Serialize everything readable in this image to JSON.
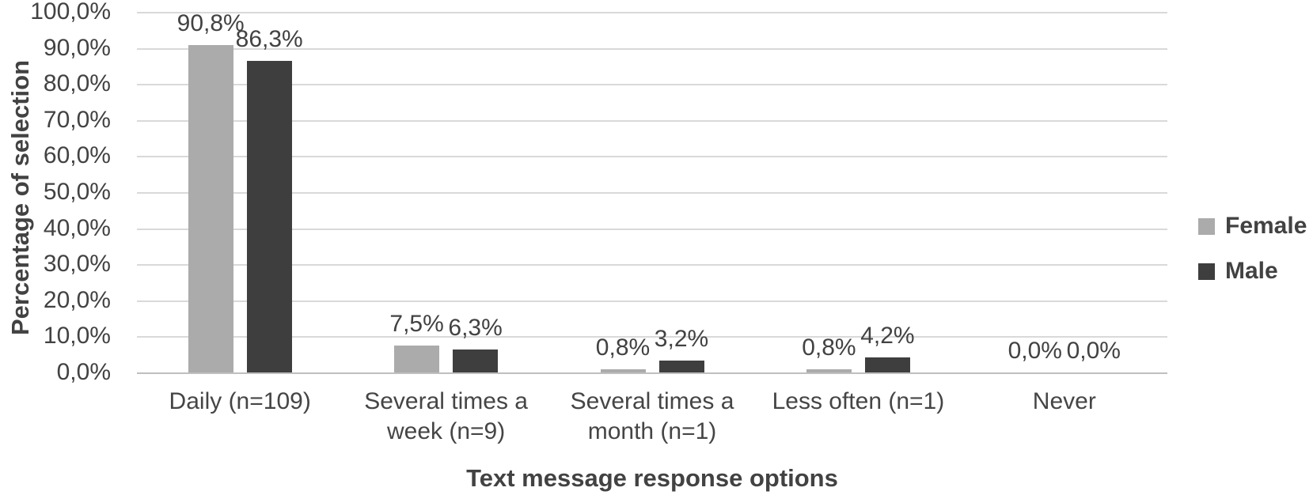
{
  "chart_data": {
    "type": "bar",
    "title": "",
    "xlabel": "Text message response options",
    "ylabel": "Percentage of selection",
    "categories": [
      "Daily (n=109)",
      "Several times a week (n=9)",
      "Several times a month (n=1)",
      "Less often (n=1)",
      "Never"
    ],
    "category_lines": [
      [
        "Daily (n=109)"
      ],
      [
        "Several times a",
        "week (n=9)"
      ],
      [
        "Several times a",
        "month (n=1)"
      ],
      [
        "Less often (n=1)"
      ],
      [
        "Never"
      ]
    ],
    "series": [
      {
        "name": "Female",
        "color": "#ababab",
        "values": [
          90.8,
          7.5,
          0.8,
          0.8,
          0.0
        ],
        "labels": [
          "90,8%",
          "7,5%",
          "0,8%",
          "0,8%",
          "0,0%"
        ]
      },
      {
        "name": "Male",
        "color": "#3e3e3e",
        "values": [
          86.3,
          6.3,
          3.2,
          4.2,
          0.0
        ],
        "labels": [
          "86,3%",
          "6,3%",
          "3,2%",
          "4,2%",
          "0,0%"
        ]
      }
    ],
    "ylim": [
      0,
      100
    ],
    "ytick_step": 10,
    "ytick_labels": [
      "0,0%",
      "10,0%",
      "20,0%",
      "30,0%",
      "40,0%",
      "50,0%",
      "60,0%",
      "70,0%",
      "80,0%",
      "90,0%",
      "100,0%"
    ],
    "grid": true,
    "legend_position": "right",
    "decimal_separator": ","
  },
  "colors": {
    "gridline": "#d9d9d9",
    "axis_line": "#bfbfbf",
    "text": "#424242",
    "female_bar": "#ababab",
    "male_bar": "#3e3e3e",
    "background": "#ffffff"
  }
}
